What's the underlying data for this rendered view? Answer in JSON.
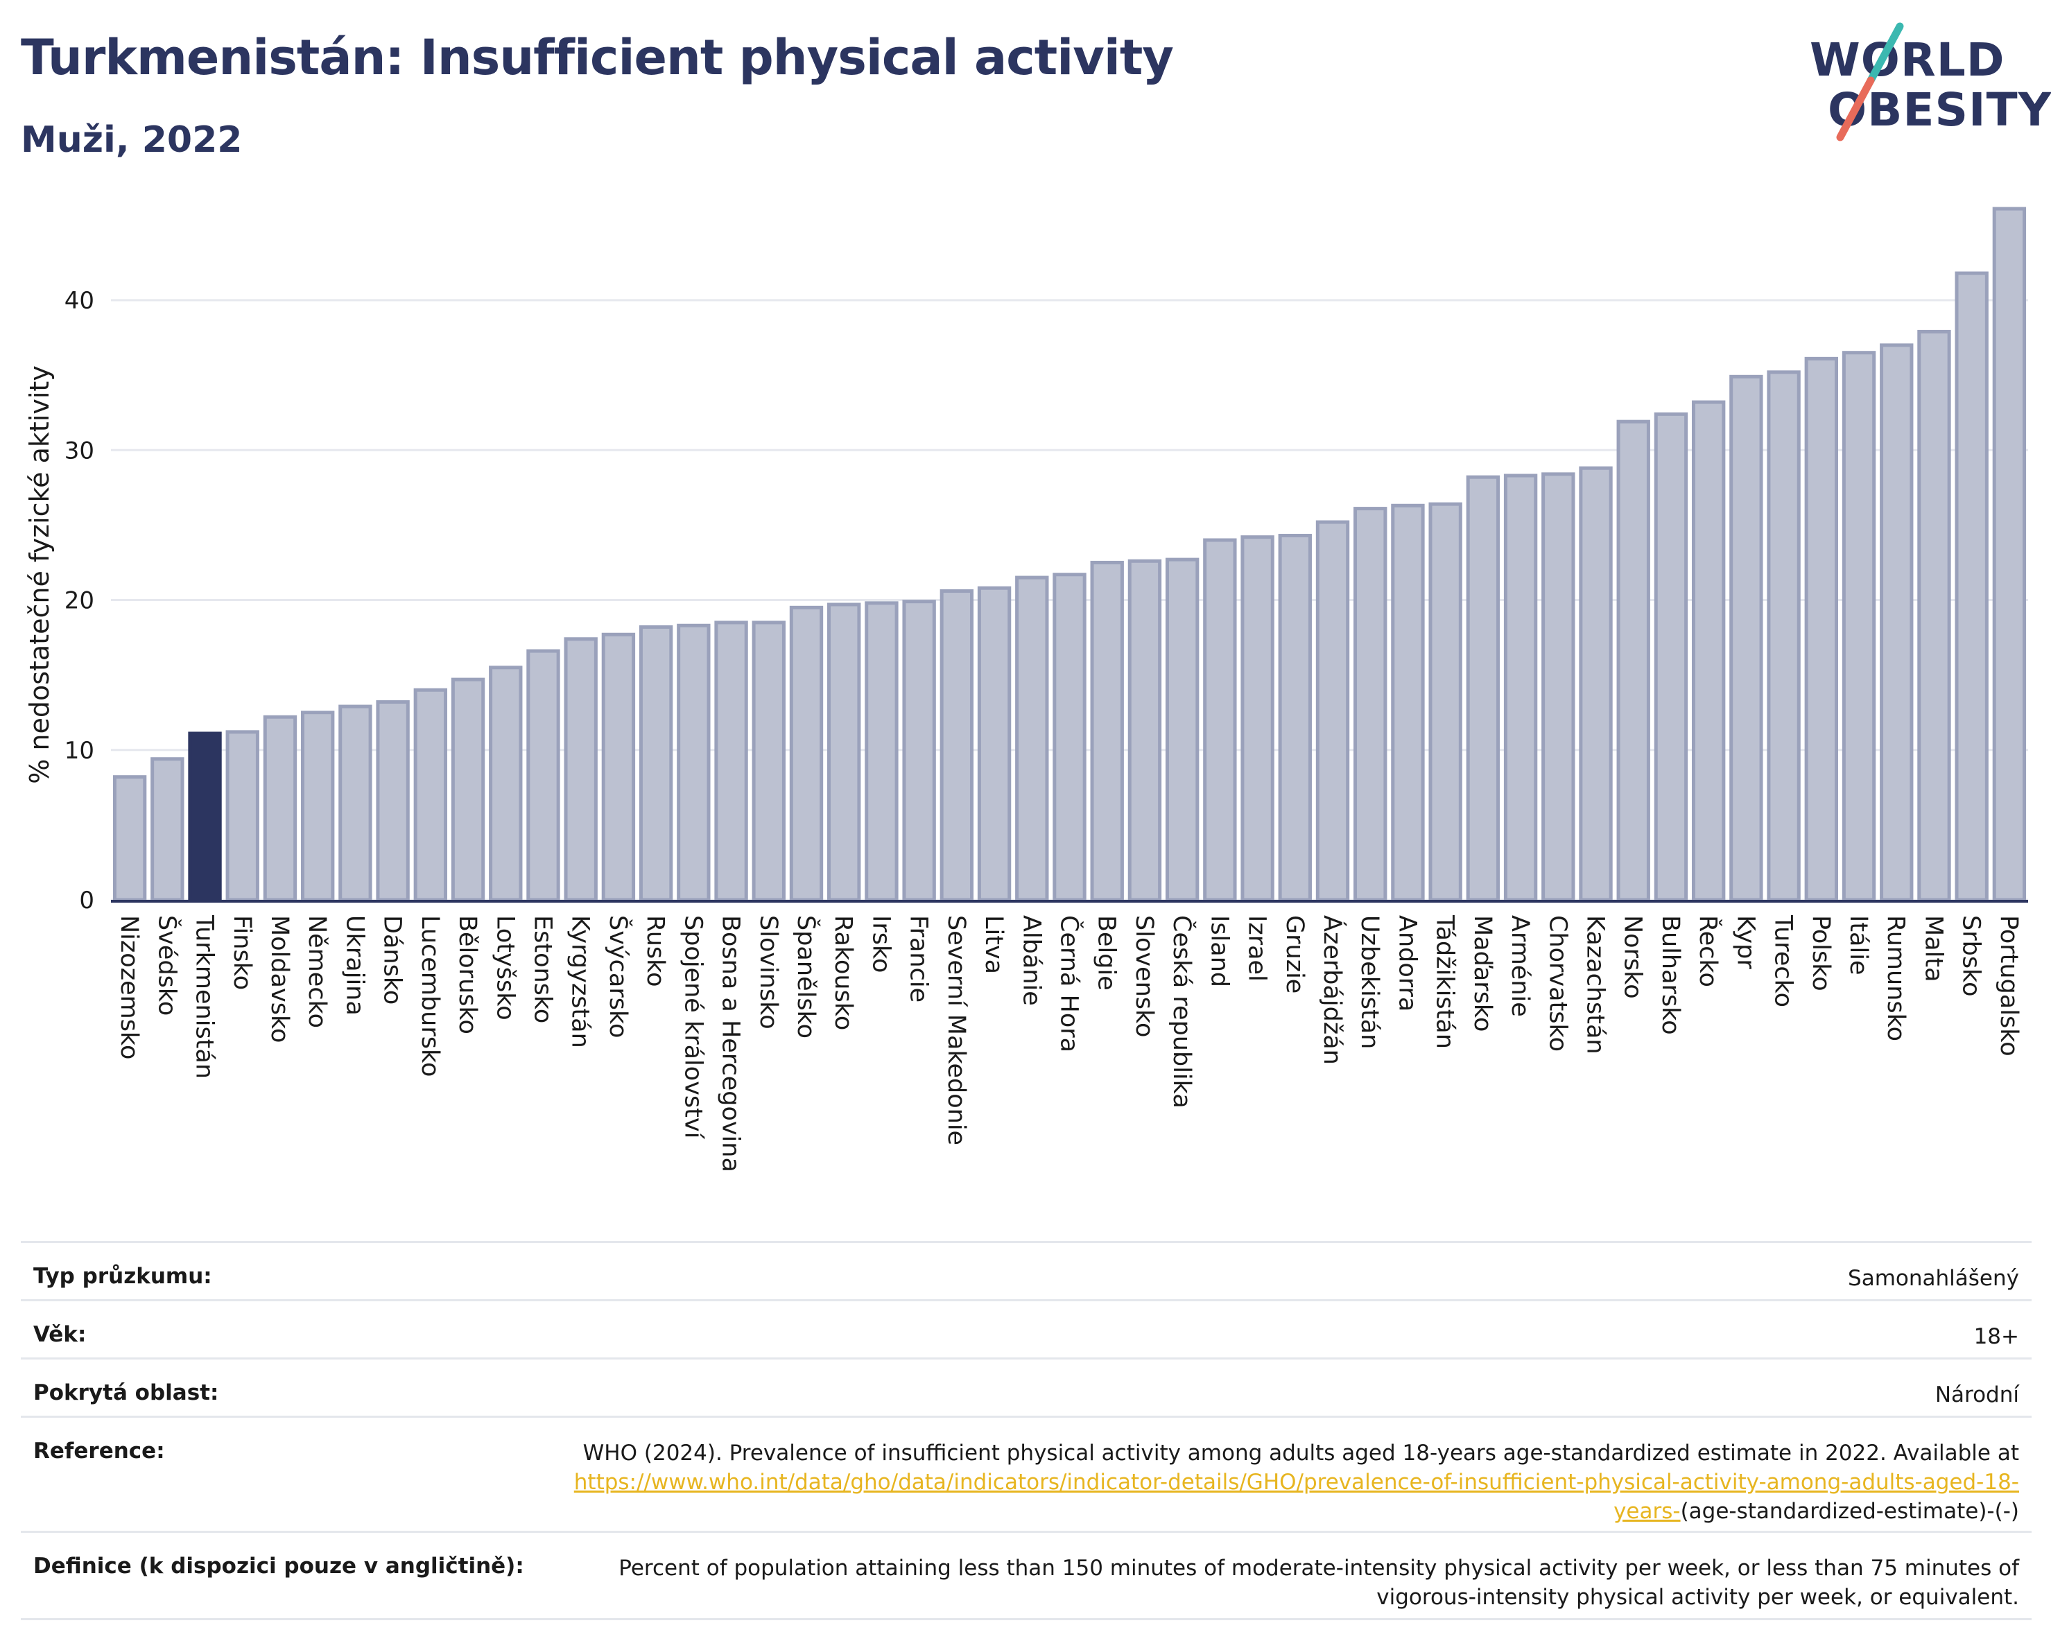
{
  "header": {
    "title": "Turkmenistán: Insufficient physical activity",
    "subtitle": "Muži, 2022"
  },
  "logo": {
    "line1": "WORLD",
    "line2": "OBESITY"
  },
  "colors": {
    "bar": "#bcc1d1",
    "bar_border": "#9aa1bb",
    "highlight": "#2c3560",
    "title": "#2c3560",
    "link": "#e7b520"
  },
  "chart_data": {
    "type": "bar",
    "ylabel": "% nedostatečné fyzické aktivity",
    "ylim": [
      0,
      48
    ],
    "yticks": [
      0,
      10,
      20,
      30,
      40
    ],
    "grid": true,
    "highlight": "Turkmenistán",
    "categories": [
      "Nizozemsko",
      "Švédsko",
      "Turkmenistán",
      "Finsko",
      "Moldavsko",
      "Německo",
      "Ukrajina",
      "Dánsko",
      "Lucembursko",
      "Bělorusko",
      "Lotyšsko",
      "Estonsko",
      "Kyrgyzstán",
      "Švýcarsko",
      "Rusko",
      "Spojené království",
      "Bosna a Hercegovina",
      "Slovinsko",
      "Španělsko",
      "Rakousko",
      "Irsko",
      "Francie",
      "Severní Makedonie",
      "Litva",
      "Albánie",
      "Černá Hora",
      "Belgie",
      "Slovensko",
      "Česká republika",
      "Island",
      "Izrael",
      "Gruzie",
      "Ázerbájdžán",
      "Uzbekistán",
      "Andorra",
      "Tádžikistán",
      "Maďarsko",
      "Arménie",
      "Chorvatsko",
      "Kazachstán",
      "Norsko",
      "Bulharsko",
      "Řecko",
      "Kypr",
      "Turecko",
      "Polsko",
      "Itálie",
      "Rumunsko",
      "Malta",
      "Srbsko",
      "Portugalsko"
    ],
    "values": [
      8.2,
      9.4,
      11.1,
      11.2,
      12.2,
      12.5,
      12.9,
      13.2,
      14.0,
      14.7,
      15.5,
      16.6,
      17.4,
      17.7,
      18.2,
      18.3,
      18.5,
      18.5,
      19.5,
      19.7,
      19.8,
      19.9,
      20.6,
      20.8,
      21.5,
      21.7,
      22.5,
      22.6,
      22.7,
      24.0,
      24.2,
      24.3,
      25.2,
      26.1,
      26.3,
      26.4,
      28.2,
      28.3,
      28.4,
      28.8,
      31.9,
      32.4,
      33.2,
      34.9,
      35.2,
      36.1,
      36.5,
      37.0,
      37.9,
      41.8,
      46.1
    ]
  },
  "meta": [
    {
      "label": "Typ průzkumu:",
      "value": "Samonahlášený"
    },
    {
      "label": "Věk:",
      "value": "18+"
    },
    {
      "label": "Pokrytá oblast:",
      "value": "Národní"
    },
    {
      "label": "Reference:",
      "value_prefix": "WHO (2024). Prevalence of insufficient physical activity among adults aged 18-years age-standardized estimate in 2022. Available at",
      "link": "https://www.who.int/data/gho/data/indicators/indicator-details/GHO/prevalence-of-insufficient-physical-activity-among-adults-aged-18-years-",
      "value_suffix": "(age-standardized-estimate)-(-)"
    },
    {
      "label": "Definice (k dispozici pouze v angličtině):",
      "value": "Percent of population attaining less than 150 minutes of moderate-intensity physical activity per week, or less than 75 minutes of vigorous-intensity physical activity per week, or equivalent."
    }
  ]
}
